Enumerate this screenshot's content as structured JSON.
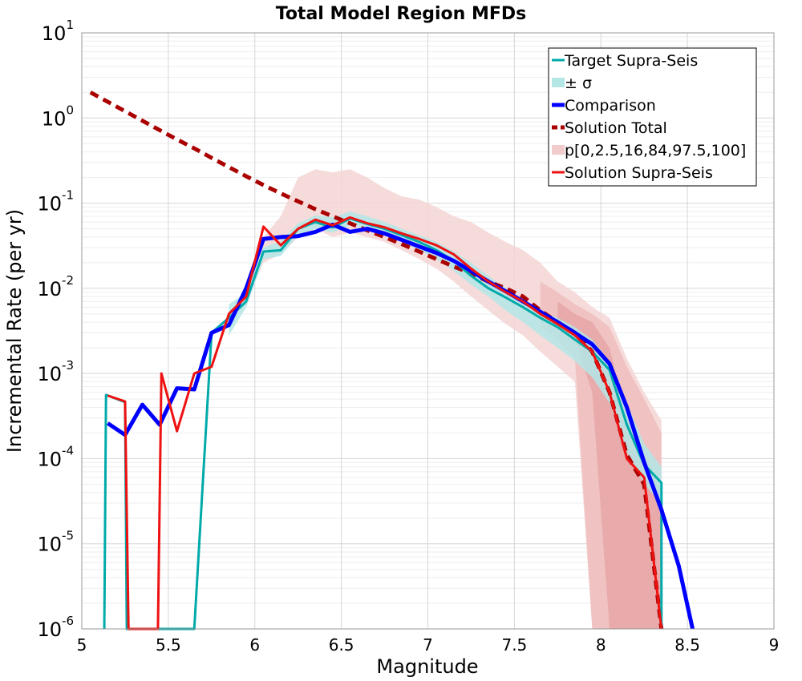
{
  "chart_data": {
    "type": "line",
    "title": "Total Model Region MFDs",
    "xlabel": "Magnitude",
    "ylabel": "Incremental Rate (per yr)",
    "xlim": [
      5,
      9
    ],
    "ylim": [
      1e-06,
      10
    ],
    "yscale": "log",
    "grid": true,
    "legend_position": "top-right",
    "x_ticks": [
      "5",
      "5.5",
      "6",
      "6.5",
      "7",
      "7.5",
      "8",
      "8.5",
      "9"
    ],
    "y_ticks": [
      {
        "base": "10",
        "exp": "-6"
      },
      {
        "base": "10",
        "exp": "-5"
      },
      {
        "base": "10",
        "exp": "-4"
      },
      {
        "base": "10",
        "exp": "-3"
      },
      {
        "base": "10",
        "exp": "-2"
      },
      {
        "base": "10",
        "exp": "-1"
      },
      {
        "base": "10",
        "exp": "0"
      },
      {
        "base": "10",
        "exp": "1"
      }
    ],
    "legend": [
      {
        "label": "Target Supra-Seis",
        "style": "line",
        "color": "#00aaaa"
      },
      {
        "label": "± σ",
        "style": "fill",
        "color": "#b4e6e6"
      },
      {
        "label": "Comparison",
        "style": "thick",
        "color": "#0000ff"
      },
      {
        "label": "Solution Total",
        "style": "dashed",
        "color": "#aa0000"
      },
      {
        "label": "p[0,2.5,16,84,97.5,100]",
        "style": "fill",
        "color": "#f2cccc"
      },
      {
        "label": "Solution Supra-Seis",
        "style": "line",
        "color": "#ee1111"
      }
    ],
    "bands": [
      {
        "name": "p0-100",
        "color": "#f4d5d5",
        "x": [
          5.95,
          6.05,
          6.15,
          6.25,
          6.35,
          6.45,
          6.55,
          6.65,
          6.75,
          6.85,
          6.95,
          7.05,
          7.15,
          7.25,
          7.35,
          7.45,
          7.55,
          7.65,
          7.75,
          7.85,
          7.95,
          8.05,
          8.15,
          8.25,
          8.35
        ],
        "lower": [
          0.007,
          0.02,
          0.025,
          0.04,
          0.05,
          0.04,
          0.045,
          0.04,
          0.035,
          0.028,
          0.022,
          0.017,
          0.012,
          0.008,
          0.0055,
          0.0038,
          0.0028,
          0.0018,
          0.0012,
          0.0008,
          1e-06,
          1e-06,
          1e-06,
          1e-06,
          1e-06
        ],
        "upper": [
          0.012,
          0.04,
          0.07,
          0.2,
          0.25,
          0.23,
          0.25,
          0.2,
          0.15,
          0.12,
          0.11,
          0.09,
          0.07,
          0.06,
          0.045,
          0.035,
          0.028,
          0.02,
          0.012,
          0.009,
          0.006,
          0.0045,
          0.0015,
          0.0006,
          0.00028
        ]
      },
      {
        "name": "p2.5-97.5",
        "color": "#eebdbd",
        "x": [
          7.65,
          7.75,
          7.85,
          7.95,
          8.05,
          8.15,
          8.25,
          8.35
        ],
        "lower": [
          0.0035,
          0.0025,
          0.0015,
          1e-06,
          1e-06,
          1e-06,
          1e-06,
          1e-06
        ],
        "upper": [
          0.012,
          0.009,
          0.0065,
          0.005,
          0.0035,
          0.0012,
          0.0005,
          0.0002
        ]
      },
      {
        "name": "p16-84",
        "color": "#e6a6a6",
        "x": [
          7.75,
          7.85,
          7.95,
          8.05,
          8.15,
          8.25,
          8.35
        ],
        "lower": [
          0.0035,
          0.0025,
          0.0006,
          1e-06,
          1e-06,
          1e-06,
          1e-06
        ],
        "upper": [
          0.007,
          0.005,
          0.004,
          0.002,
          0.0003,
          0.00012,
          4e-05
        ]
      },
      {
        "name": "± σ",
        "color": "#b4e6e6",
        "x": [
          5.85,
          5.95,
          6.05,
          6.15,
          6.25,
          6.35,
          6.45,
          6.55,
          6.65,
          6.75,
          6.85,
          6.95,
          7.05,
          7.15,
          7.25,
          7.35,
          7.45,
          7.55,
          7.65,
          7.75,
          7.85,
          7.95,
          8.05,
          8.15,
          8.25,
          8.35
        ],
        "lower": [
          0.0028,
          0.006,
          0.022,
          0.024,
          0.042,
          0.05,
          0.045,
          0.055,
          0.05,
          0.042,
          0.035,
          0.028,
          0.022,
          0.016,
          0.011,
          0.008,
          0.0055,
          0.004,
          0.0028,
          0.002,
          0.0014,
          0.0009,
          0.00045,
          0.00012,
          5e-05,
          3e-05
        ],
        "upper": [
          0.0065,
          0.009,
          0.03,
          0.036,
          0.058,
          0.072,
          0.068,
          0.08,
          0.07,
          0.06,
          0.05,
          0.042,
          0.035,
          0.027,
          0.02,
          0.014,
          0.01,
          0.0075,
          0.0055,
          0.0045,
          0.0035,
          0.0025,
          0.0014,
          0.00045,
          0.00015,
          8e-05
        ]
      }
    ],
    "series": [
      {
        "name": "Solution Total",
        "color": "#aa0000",
        "width": 5,
        "dash": "11,7",
        "x": [
          5.05,
          5.15,
          5.25,
          5.35,
          5.45,
          5.55,
          5.65,
          5.75,
          5.85,
          5.95,
          6.05,
          6.15,
          6.25,
          6.35,
          6.45,
          6.55,
          6.65,
          6.75,
          6.85,
          6.95,
          7.05,
          7.15,
          7.25,
          7.35,
          7.45,
          7.55,
          7.65,
          7.75,
          7.85,
          7.95,
          8.05,
          8.15,
          8.25,
          8.35
        ],
        "y": [
          2.0,
          1.55,
          1.2,
          0.93,
          0.72,
          0.56,
          0.44,
          0.34,
          0.265,
          0.207,
          0.163,
          0.13,
          0.105,
          0.085,
          0.07,
          0.058,
          0.048,
          0.04,
          0.033,
          0.027,
          0.022,
          0.018,
          0.015,
          0.012,
          0.01,
          0.008,
          0.0055,
          0.004,
          0.003,
          0.0018,
          0.0006,
          0.00011,
          5e-05,
          1e-06
        ]
      },
      {
        "name": "Target Supra-Seis",
        "color": "#00aaaa",
        "width": 3,
        "dash": "",
        "x": [
          5.13,
          5.14,
          5.25,
          5.26,
          5.35,
          5.45,
          5.55,
          5.65,
          5.75,
          5.85,
          5.95,
          6.05,
          6.15,
          6.25,
          6.35,
          6.45,
          6.55,
          6.65,
          6.75,
          6.85,
          6.95,
          7.05,
          7.15,
          7.25,
          7.35,
          7.45,
          7.55,
          7.65,
          7.75,
          7.85,
          7.95,
          8.05,
          8.15,
          8.25,
          8.35,
          8.35
        ],
        "y": [
          1e-06,
          0.00056,
          0.00046,
          1e-06,
          1e-06,
          1e-06,
          1e-06,
          1e-06,
          0.003,
          0.0045,
          0.007,
          0.027,
          0.028,
          0.05,
          0.06,
          0.052,
          0.066,
          0.057,
          0.05,
          0.042,
          0.035,
          0.028,
          0.021,
          0.014,
          0.01,
          0.0078,
          0.006,
          0.0045,
          0.0035,
          0.0025,
          0.0018,
          0.0011,
          0.00025,
          8.5e-05,
          5.2e-05,
          1e-06
        ]
      },
      {
        "name": "Comparison",
        "color": "#0000ff",
        "width": 5,
        "dash": "",
        "x": [
          5.15,
          5.25,
          5.35,
          5.45,
          5.55,
          5.65,
          5.75,
          5.85,
          5.95,
          6.05,
          6.15,
          6.25,
          6.35,
          6.45,
          6.55,
          6.65,
          6.75,
          6.85,
          6.95,
          7.05,
          7.15,
          7.25,
          7.35,
          7.45,
          7.55,
          7.65,
          7.75,
          7.85,
          7.95,
          8.05,
          8.15,
          8.25,
          8.35,
          8.45,
          8.53
        ],
        "y": [
          0.00026,
          0.00019,
          0.00043,
          0.00025,
          0.00067,
          0.00065,
          0.003,
          0.0037,
          0.01,
          0.038,
          0.04,
          0.041,
          0.046,
          0.056,
          0.046,
          0.05,
          0.044,
          0.037,
          0.031,
          0.026,
          0.021,
          0.016,
          0.012,
          0.0092,
          0.007,
          0.0053,
          0.004,
          0.003,
          0.0022,
          0.0013,
          0.0004,
          9e-05,
          2.5e-05,
          5.5e-06,
          1e-06
        ]
      },
      {
        "name": "Solution Supra-Seis",
        "color": "#ee1111",
        "width": 3,
        "dash": "",
        "x": [
          5.15,
          5.25,
          5.27,
          5.44,
          5.46,
          5.55,
          5.65,
          5.75,
          5.85,
          5.95,
          6.05,
          6.15,
          6.25,
          6.35,
          6.45,
          6.55,
          6.65,
          6.75,
          6.85,
          6.95,
          7.05,
          7.15,
          7.25,
          7.35,
          7.45,
          7.55,
          7.65,
          7.75,
          7.85,
          7.95,
          8.05,
          8.15,
          8.25,
          8.35
        ],
        "y": [
          0.00055,
          0.00047,
          1e-06,
          1e-06,
          0.001,
          0.00021,
          0.001,
          0.0012,
          0.005,
          0.008,
          0.053,
          0.032,
          0.05,
          0.064,
          0.055,
          0.068,
          0.058,
          0.052,
          0.044,
          0.038,
          0.032,
          0.025,
          0.017,
          0.012,
          0.009,
          0.007,
          0.005,
          0.0038,
          0.0028,
          0.0018,
          0.0006,
          0.0001,
          6e-05,
          1e-06
        ]
      }
    ]
  }
}
